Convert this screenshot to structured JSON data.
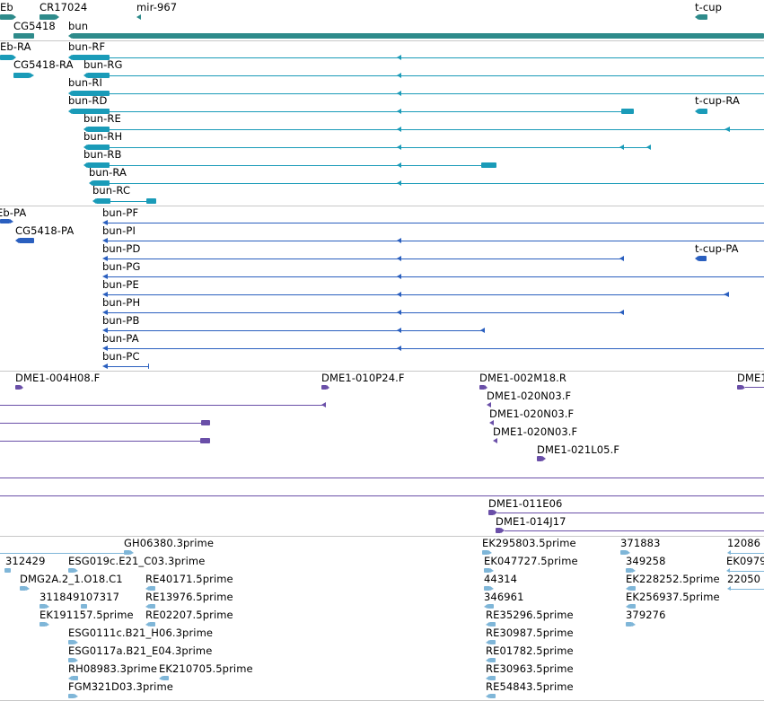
{
  "colors": {
    "genes": "#2e8b8b",
    "transcripts": "#1a9bb8",
    "proteins": "#2a5fbf",
    "clones": "#6a4fa8",
    "ests": "#7fb6d8",
    "separator": "#c8c8c8"
  },
  "genes": [
    {
      "label": "Eb"
    },
    {
      "label": "CR17024"
    },
    {
      "label": "mir-967"
    },
    {
      "label": "t-cup"
    },
    {
      "label": "CG5418"
    },
    {
      "label": "bun"
    }
  ],
  "transcripts": [
    {
      "label": "Eb-RA"
    },
    {
      "label": "bun-RF"
    },
    {
      "label": "CG5418-RA"
    },
    {
      "label": "bun-RG"
    },
    {
      "label": "bun-RI"
    },
    {
      "label": "bun-RD"
    },
    {
      "label": "t-cup-RA"
    },
    {
      "label": "bun-RE"
    },
    {
      "label": "bun-RH"
    },
    {
      "label": "bun-RB"
    },
    {
      "label": "bun-RA"
    },
    {
      "label": "bun-RC"
    }
  ],
  "proteins": [
    {
      "label": "Eb-PA"
    },
    {
      "label": "bun-PF"
    },
    {
      "label": "CG5418-PA"
    },
    {
      "label": "bun-PI"
    },
    {
      "label": "bun-PD"
    },
    {
      "label": "t-cup-PA"
    },
    {
      "label": "bun-PG"
    },
    {
      "label": "bun-PE"
    },
    {
      "label": "bun-PH"
    },
    {
      "label": "bun-PB"
    },
    {
      "label": "bun-PA"
    },
    {
      "label": "bun-PC"
    }
  ],
  "clones": [
    {
      "label": "DME1-004H08.F"
    },
    {
      "label": "DME1-010P24.F"
    },
    {
      "label": "DME1-002M18.R"
    },
    {
      "label": "DME1"
    },
    {
      "label": "DME1-020N03.F"
    },
    {
      "label": "DME1-020N03.F"
    },
    {
      "label": "DME1-020N03.F"
    },
    {
      "label": "DME1-021L05.F"
    },
    {
      "label": "DME1-011E06"
    },
    {
      "label": "DME1-014J17"
    }
  ],
  "ests": [
    {
      "label": "GH06380.3prime"
    },
    {
      "label": "EK295803.5prime"
    },
    {
      "label": "371883"
    },
    {
      "label": "12086"
    },
    {
      "label": "312429"
    },
    {
      "label": "ESG019c.E21_C03.3prime"
    },
    {
      "label": "EK047727.5prime"
    },
    {
      "label": "349258"
    },
    {
      "label": "EK0979"
    },
    {
      "label": "DMG2A.2_1.O18.C1"
    },
    {
      "label": "RE40171.5prime"
    },
    {
      "label": "44314"
    },
    {
      "label": "EK228252.5prime"
    },
    {
      "label": "22050"
    },
    {
      "label": "311849107317"
    },
    {
      "label": "RE13976.5prime"
    },
    {
      "label": "346961"
    },
    {
      "label": "EK256937.5prime"
    },
    {
      "label": "EK191157.5prime"
    },
    {
      "label": "RE02207.5prime"
    },
    {
      "label": "RE35296.5prime"
    },
    {
      "label": "379276"
    },
    {
      "label": "ESG0111c.B21_H06.3prime"
    },
    {
      "label": "RE30987.5prime"
    },
    {
      "label": "ESG0117a.B21_E04.3prime"
    },
    {
      "label": "RE01782.5prime"
    },
    {
      "label": "RH08983.3prime"
    },
    {
      "label": "EK210705.5prime"
    },
    {
      "label": "RE30963.5prime"
    },
    {
      "label": "FGM321D03.3prime"
    },
    {
      "label": "RE54843.5prime"
    }
  ]
}
